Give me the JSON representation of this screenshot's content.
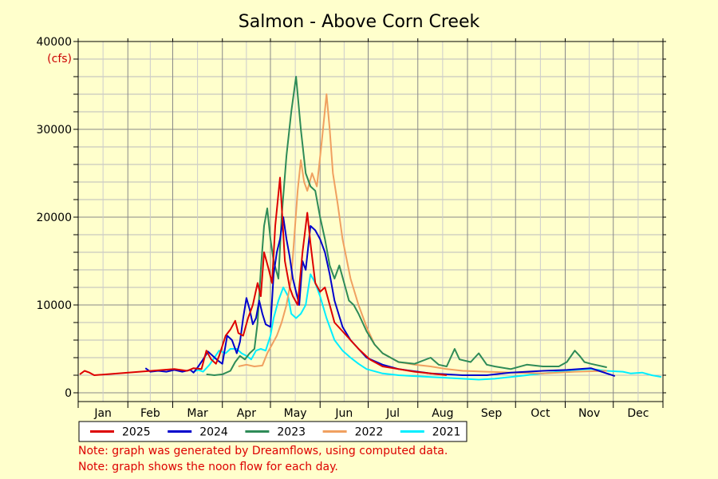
{
  "chart_data": {
    "type": "line",
    "title": "Salmon - Above Corn Creek",
    "units_label": "(cfs)",
    "ylim": [
      0,
      40000
    ],
    "yticks": [
      0,
      10000,
      20000,
      30000,
      40000
    ],
    "months": [
      "Jan",
      "Feb",
      "Mar",
      "Apr",
      "May",
      "Jun",
      "Jul",
      "Aug",
      "Sep",
      "Oct",
      "Nov",
      "Dec"
    ],
    "grid": true,
    "legend_position": "bottom",
    "series": [
      {
        "name": "2025",
        "color": "#dd0000",
        "points": [
          [
            1,
            2100
          ],
          [
            4,
            2500
          ],
          [
            7,
            2300
          ],
          [
            10,
            2000
          ],
          [
            60,
            2700
          ],
          [
            68,
            2500
          ],
          [
            72,
            2800
          ],
          [
            77,
            2700
          ],
          [
            80,
            4800
          ],
          [
            83,
            3800
          ],
          [
            86,
            3300
          ],
          [
            88,
            4200
          ],
          [
            92,
            6500
          ],
          [
            95,
            7200
          ],
          [
            98,
            8200
          ],
          [
            100,
            6800
          ],
          [
            103,
            6500
          ],
          [
            106,
            8500
          ],
          [
            109,
            10000
          ],
          [
            112,
            12500
          ],
          [
            114,
            11000
          ],
          [
            116,
            16000
          ],
          [
            119,
            14000
          ],
          [
            121,
            12500
          ],
          [
            123,
            19000
          ],
          [
            126,
            24500
          ],
          [
            129,
            15000
          ],
          [
            132,
            12000
          ],
          [
            134,
            11000
          ],
          [
            137,
            10000
          ],
          [
            140,
            16000
          ],
          [
            143,
            20500
          ],
          [
            145,
            17000
          ],
          [
            148,
            12500
          ],
          [
            151,
            11500
          ],
          [
            154,
            12000
          ],
          [
            157,
            10000
          ],
          [
            160,
            8000
          ],
          [
            165,
            7000
          ],
          [
            170,
            6000
          ],
          [
            175,
            5000
          ],
          [
            182,
            3800
          ],
          [
            190,
            3000
          ],
          [
            200,
            2700
          ],
          [
            210,
            2400
          ],
          [
            220,
            2200
          ],
          [
            230,
            2000
          ]
        ]
      },
      {
        "name": "2024",
        "color": "#0000cc",
        "points": [
          [
            42,
            2800
          ],
          [
            45,
            2400
          ],
          [
            50,
            2500
          ],
          [
            55,
            2400
          ],
          [
            60,
            2600
          ],
          [
            65,
            2400
          ],
          [
            70,
            2600
          ],
          [
            72,
            2300
          ],
          [
            75,
            3000
          ],
          [
            78,
            3800
          ],
          [
            81,
            4700
          ],
          [
            84,
            4200
          ],
          [
            87,
            3700
          ],
          [
            90,
            3300
          ],
          [
            93,
            6500
          ],
          [
            96,
            6000
          ],
          [
            99,
            4500
          ],
          [
            101,
            5800
          ],
          [
            103,
            8500
          ],
          [
            105,
            10800
          ],
          [
            107,
            9500
          ],
          [
            109,
            7800
          ],
          [
            111,
            8500
          ],
          [
            113,
            10500
          ],
          [
            115,
            9000
          ],
          [
            117,
            7800
          ],
          [
            120,
            7500
          ],
          [
            122,
            13500
          ],
          [
            124,
            16000
          ],
          [
            126,
            17500
          ],
          [
            128,
            20000
          ],
          [
            130,
            17500
          ],
          [
            132,
            15500
          ],
          [
            134,
            13000
          ],
          [
            136,
            11500
          ],
          [
            138,
            10000
          ],
          [
            140,
            15000
          ],
          [
            142,
            14000
          ],
          [
            145,
            19000
          ],
          [
            148,
            18500
          ],
          [
            151,
            17500
          ],
          [
            154,
            16000
          ],
          [
            157,
            13500
          ],
          [
            160,
            10500
          ],
          [
            165,
            7500
          ],
          [
            170,
            6000
          ],
          [
            180,
            4000
          ],
          [
            190,
            3200
          ],
          [
            200,
            2700
          ],
          [
            220,
            2200
          ],
          [
            240,
            2000
          ],
          [
            255,
            2000
          ],
          [
            270,
            2300
          ],
          [
            290,
            2500
          ],
          [
            305,
            2600
          ],
          [
            320,
            2800
          ],
          [
            325,
            2500
          ],
          [
            330,
            2200
          ],
          [
            335,
            1900
          ]
        ]
      },
      {
        "name": "2023",
        "color": "#2e8b57",
        "points": [
          [
            80,
            2100
          ],
          [
            85,
            2000
          ],
          [
            90,
            2100
          ],
          [
            95,
            2500
          ],
          [
            98,
            3500
          ],
          [
            101,
            4200
          ],
          [
            104,
            3800
          ],
          [
            107,
            4500
          ],
          [
            110,
            5000
          ],
          [
            112,
            8000
          ],
          [
            114,
            14000
          ],
          [
            116,
            19000
          ],
          [
            118,
            21000
          ],
          [
            120,
            17500
          ],
          [
            122,
            15000
          ],
          [
            125,
            13000
          ],
          [
            127,
            20000
          ],
          [
            130,
            27000
          ],
          [
            133,
            32000
          ],
          [
            136,
            36000
          ],
          [
            139,
            30000
          ],
          [
            142,
            25000
          ],
          [
            145,
            23500
          ],
          [
            148,
            23000
          ],
          [
            151,
            20000
          ],
          [
            154,
            17500
          ],
          [
            157,
            14500
          ],
          [
            160,
            13000
          ],
          [
            163,
            14500
          ],
          [
            166,
            12500
          ],
          [
            169,
            10500
          ],
          [
            172,
            10000
          ],
          [
            175,
            9000
          ],
          [
            180,
            7000
          ],
          [
            185,
            5500
          ],
          [
            190,
            4500
          ],
          [
            200,
            3500
          ],
          [
            210,
            3300
          ],
          [
            220,
            4000
          ],
          [
            225,
            3200
          ],
          [
            230,
            3000
          ],
          [
            235,
            5000
          ],
          [
            238,
            3800
          ],
          [
            245,
            3500
          ],
          [
            250,
            4500
          ],
          [
            255,
            3200
          ],
          [
            260,
            3000
          ],
          [
            270,
            2700
          ],
          [
            280,
            3200
          ],
          [
            290,
            3000
          ],
          [
            300,
            3000
          ],
          [
            305,
            3500
          ],
          [
            310,
            4800
          ],
          [
            313,
            4200
          ],
          [
            316,
            3500
          ],
          [
            320,
            3300
          ],
          [
            330,
            2900
          ]
        ]
      },
      {
        "name": "2022",
        "color": "#f0a060",
        "points": [
          [
            100,
            3000
          ],
          [
            105,
            3200
          ],
          [
            110,
            3000
          ],
          [
            115,
            3100
          ],
          [
            118,
            4500
          ],
          [
            121,
            5500
          ],
          [
            124,
            6500
          ],
          [
            127,
            8000
          ],
          [
            130,
            10000
          ],
          [
            133,
            13000
          ],
          [
            135,
            18000
          ],
          [
            137,
            23000
          ],
          [
            139,
            26500
          ],
          [
            141,
            24000
          ],
          [
            143,
            23000
          ],
          [
            146,
            25000
          ],
          [
            149,
            23500
          ],
          [
            152,
            28500
          ],
          [
            155,
            34000
          ],
          [
            157,
            30000
          ],
          [
            159,
            25000
          ],
          [
            162,
            21500
          ],
          [
            165,
            17500
          ],
          [
            170,
            13000
          ],
          [
            175,
            10000
          ],
          [
            180,
            7500
          ],
          [
            185,
            5500
          ],
          [
            190,
            4500
          ],
          [
            200,
            3500
          ],
          [
            210,
            3200
          ],
          [
            220,
            3000
          ],
          [
            230,
            2700
          ],
          [
            240,
            2500
          ],
          [
            255,
            2400
          ],
          [
            270,
            2300
          ],
          [
            290,
            2200
          ],
          [
            310,
            2400
          ],
          [
            330,
            2500
          ]
        ]
      },
      {
        "name": "2021",
        "color": "#00eeff",
        "points": [
          [
            72,
            2400
          ],
          [
            75,
            2600
          ],
          [
            78,
            2400
          ],
          [
            82,
            3200
          ],
          [
            85,
            4000
          ],
          [
            88,
            4800
          ],
          [
            92,
            4500
          ],
          [
            95,
            5000
          ],
          [
            99,
            5000
          ],
          [
            102,
            4500
          ],
          [
            105,
            4200
          ],
          [
            108,
            3800
          ],
          [
            111,
            4800
          ],
          [
            114,
            5000
          ],
          [
            117,
            4800
          ],
          [
            120,
            6500
          ],
          [
            122,
            8500
          ],
          [
            125,
            10500
          ],
          [
            128,
            12000
          ],
          [
            131,
            11000
          ],
          [
            133,
            9000
          ],
          [
            136,
            8500
          ],
          [
            139,
            9000
          ],
          [
            142,
            10000
          ],
          [
            145,
            13500
          ],
          [
            148,
            12500
          ],
          [
            151,
            11000
          ],
          [
            155,
            8500
          ],
          [
            160,
            6000
          ],
          [
            165,
            4800
          ],
          [
            170,
            4000
          ],
          [
            175,
            3300
          ],
          [
            180,
            2700
          ],
          [
            190,
            2200
          ],
          [
            200,
            2000
          ],
          [
            210,
            1900
          ],
          [
            220,
            1800
          ],
          [
            230,
            1700
          ],
          [
            240,
            1600
          ],
          [
            250,
            1500
          ],
          [
            260,
            1600
          ],
          [
            270,
            1800
          ],
          [
            280,
            2000
          ],
          [
            290,
            2200
          ],
          [
            300,
            2400
          ],
          [
            310,
            2600
          ],
          [
            320,
            2700
          ],
          [
            330,
            2500
          ],
          [
            340,
            2400
          ],
          [
            345,
            2200
          ],
          [
            352,
            2300
          ],
          [
            358,
            2000
          ],
          [
            364,
            1800
          ]
        ]
      }
    ]
  },
  "notes": [
    "Note: graph was generated by Dreamflows, using computed data.",
    "Note: graph shows the noon flow for each day."
  ]
}
